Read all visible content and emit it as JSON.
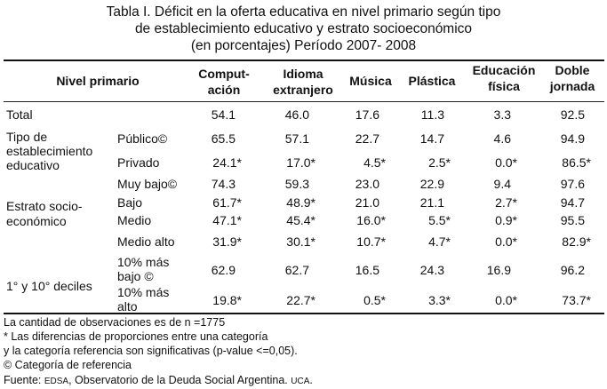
{
  "title": {
    "line1": "Tabla I. Déficit en la oferta educativa en nivel primario según tipo",
    "line2": "de establecimiento educativo y estrato socioeconómico",
    "line3": "(en porcentajes) Período 2007- 2008"
  },
  "header": {
    "nivel": "Nivel primario",
    "computacion": [
      "Comput-",
      "ación"
    ],
    "idioma": [
      "Idioma",
      "extranjero"
    ],
    "musica": "Música",
    "plastica": "Plástica",
    "educacion": [
      "Educación",
      "física"
    ],
    "doble": [
      "Doble",
      "jornada"
    ]
  },
  "groups": {
    "total": "Total",
    "tipo": [
      "Tipo de",
      "establecimiento",
      "educativo"
    ],
    "estrato": [
      "Estrato socio-",
      "económico"
    ],
    "deciles": "1° y 10° deciles"
  },
  "rows": [
    {
      "label": "",
      "values": [
        "54.1",
        "46.0",
        "17.6",
        "11.3",
        "3.3",
        "92.5"
      ]
    },
    {
      "label": "Público©",
      "values": [
        "65.5",
        "57.1",
        "22.7",
        "14.7",
        "4.6",
        "94.9"
      ]
    },
    {
      "label": "Privado",
      "values": [
        "24.1*",
        "17.0*",
        "4.5*",
        "2.5*",
        "0.0*",
        "86.5*"
      ]
    },
    {
      "label": "Muy bajo©",
      "values": [
        "74.3",
        "59.3",
        "23.0",
        "22.9",
        "9.4",
        "97.6"
      ]
    },
    {
      "label": "Bajo",
      "values": [
        "61.7*",
        "48.9*",
        "21.0",
        "21.1",
        "2.7*",
        "94.7"
      ]
    },
    {
      "label": "Medio",
      "values": [
        "47.1*",
        "45.4*",
        "16.0*",
        "5.5*",
        "0.9*",
        "95.5"
      ]
    },
    {
      "label": "Medio alto",
      "values": [
        "31.9*",
        "30.1*",
        "10.7*",
        "4.7*",
        "0.0*",
        "82.9*"
      ]
    },
    {
      "label": [
        "10% más",
        "bajo ©"
      ],
      "values": [
        "62.9",
        "62.7",
        "16.5",
        "24.3",
        "16.9",
        "96.2"
      ]
    },
    {
      "label": [
        "10% más",
        "alto"
      ],
      "values": [
        "19.8*",
        "22.7*",
        "0.5*",
        "3.3*",
        "0.0*",
        "73.7*"
      ]
    }
  ],
  "notes": {
    "n": "La cantidad de observaciones es de n =1775",
    "sig1": "* Las diferencias de proporciones entre una categoría",
    "sig2": "y la categoría referencia son significativas (p-value <=0,05).",
    "ref": "© Categoría de referencia",
    "fuente_a": "Fuente: ",
    "fuente_b": "EDSA",
    "fuente_c": ", Observatorio de la Deuda Social Argentina. ",
    "fuente_d": "UCA",
    "fuente_e": "."
  }
}
